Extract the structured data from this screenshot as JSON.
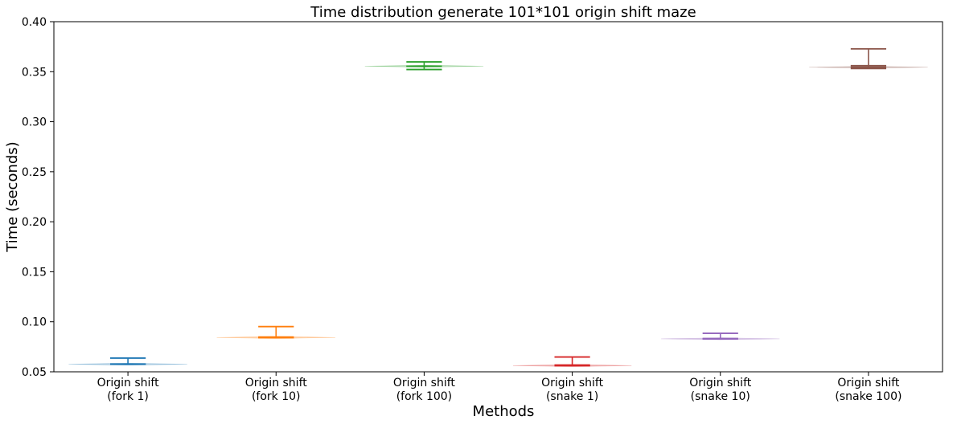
{
  "chart_data": {
    "type": "violin",
    "title": "Time distribution generate 101*101 origin shift maze",
    "xlabel": "Methods",
    "ylabel": "Time (seconds)",
    "ylim": [
      0.05,
      0.4
    ],
    "yticks": [
      "0.05",
      "0.10",
      "0.15",
      "0.20",
      "0.25",
      "0.30",
      "0.35",
      "0.40"
    ],
    "grid": false,
    "categories": [
      [
        "Origin shift",
        "(fork 1)"
      ],
      [
        "Origin shift",
        "(fork 10)"
      ],
      [
        "Origin shift",
        "(fork 100)"
      ],
      [
        "Origin shift",
        "(snake 1)"
      ],
      [
        "Origin shift",
        "(snake 10)"
      ],
      [
        "Origin shift",
        "(snake 100)"
      ]
    ],
    "series": [
      {
        "color": "#1f77b4",
        "min": 0.0575,
        "max": 0.0637,
        "mean": 0.0578,
        "median": 0.0576
      },
      {
        "color": "#ff7f0e",
        "min": 0.084,
        "max": 0.0952,
        "mean": 0.0848,
        "median": 0.0843
      },
      {
        "color": "#2ca02c",
        "min": 0.3522,
        "max": 0.3598,
        "mean": 0.3555,
        "median": 0.3555
      },
      {
        "color": "#d62728",
        "min": 0.056,
        "max": 0.0648,
        "mean": 0.0568,
        "median": 0.0562
      },
      {
        "color": "#9467bd",
        "min": 0.0828,
        "max": 0.0885,
        "mean": 0.0833,
        "median": 0.083
      },
      {
        "color": "#8c564b",
        "min": 0.3532,
        "max": 0.3728,
        "mean": 0.356,
        "median": 0.3545
      }
    ]
  }
}
